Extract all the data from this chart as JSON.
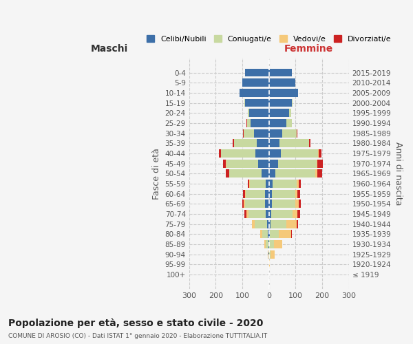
{
  "age_groups": [
    "100+",
    "95-99",
    "90-94",
    "85-89",
    "80-84",
    "75-79",
    "70-74",
    "65-69",
    "60-64",
    "55-59",
    "50-54",
    "45-49",
    "40-44",
    "35-39",
    "30-34",
    "25-29",
    "20-24",
    "15-19",
    "10-14",
    "5-9",
    "0-4"
  ],
  "birth_years": [
    "≤ 1919",
    "1920-1924",
    "1925-1929",
    "1930-1934",
    "1935-1939",
    "1940-1944",
    "1945-1949",
    "1950-1954",
    "1955-1959",
    "1960-1964",
    "1965-1969",
    "1970-1974",
    "1975-1979",
    "1980-1984",
    "1985-1989",
    "1990-1994",
    "1995-1999",
    "2000-2004",
    "2005-2009",
    "2010-2014",
    "2015-2019"
  ],
  "maschi": {
    "celibe": [
      0,
      0,
      1,
      2,
      4,
      8,
      12,
      14,
      15,
      12,
      28,
      40,
      50,
      45,
      55,
      68,
      75,
      90,
      110,
      100,
      90
    ],
    "coniugato": [
      0,
      0,
      2,
      10,
      22,
      45,
      65,
      75,
      72,
      60,
      120,
      120,
      130,
      85,
      40,
      15,
      5,
      2,
      0,
      0,
      0
    ],
    "vedovo": [
      0,
      0,
      2,
      5,
      8,
      10,
      8,
      5,
      3,
      2,
      2,
      1,
      1,
      0,
      0,
      0,
      0,
      0,
      0,
      0,
      0
    ],
    "divorziato": [
      0,
      0,
      0,
      0,
      0,
      2,
      8,
      6,
      8,
      5,
      12,
      12,
      8,
      5,
      2,
      2,
      0,
      0,
      0,
      0,
      0
    ]
  },
  "femmine": {
    "nubile": [
      0,
      0,
      1,
      2,
      3,
      5,
      8,
      10,
      12,
      14,
      25,
      35,
      45,
      40,
      50,
      65,
      75,
      85,
      110,
      100,
      85
    ],
    "coniugata": [
      0,
      1,
      5,
      18,
      35,
      60,
      80,
      90,
      88,
      90,
      150,
      145,
      140,
      110,
      55,
      20,
      8,
      3,
      0,
      0,
      0
    ],
    "vedova": [
      1,
      2,
      15,
      30,
      45,
      40,
      20,
      12,
      8,
      8,
      6,
      3,
      2,
      1,
      0,
      0,
      0,
      0,
      0,
      0,
      0
    ],
    "divorziata": [
      0,
      0,
      0,
      0,
      2,
      5,
      8,
      8,
      10,
      8,
      18,
      20,
      10,
      5,
      2,
      1,
      0,
      0,
      0,
      0,
      0
    ]
  },
  "colors": {
    "celibe": "#3d6fa8",
    "coniugato": "#c8d9a0",
    "vedovo": "#f5c97a",
    "divorziato": "#cc2222"
  },
  "xlim": 300,
  "title": "Popolazione per età, sesso e stato civile - 2020",
  "subtitle": "COMUNE DI AROSIO (CO) - Dati ISTAT 1° gennaio 2020 - Elaborazione TUTTITALIA.IT",
  "ylabel_left": "Fasce di età",
  "ylabel_right": "Anni di nascita",
  "xlabel_left": "Maschi",
  "xlabel_right": "Femmine",
  "legend_labels": [
    "Celibi/Nubili",
    "Coniugati/e",
    "Vedovi/e",
    "Divorziati/e"
  ],
  "bg_color": "#f5f5f5"
}
